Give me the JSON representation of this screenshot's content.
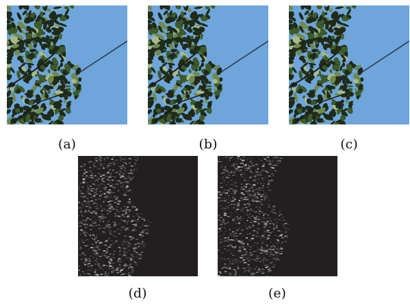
{
  "figure": {
    "panels": [
      {
        "id": "a",
        "caption": "(a)",
        "kind": "photo",
        "sky_color": "#6ea5db",
        "foliage_color": "#1f2a18"
      },
      {
        "id": "b",
        "caption": "(b)",
        "kind": "photo",
        "sky_color": "#6ea5db",
        "foliage_color": "#1f2a18"
      },
      {
        "id": "c",
        "caption": "(c)",
        "kind": "photo",
        "sky_color": "#6ea5db",
        "foliage_color": "#1f2a18"
      },
      {
        "id": "d",
        "caption": "(d)",
        "kind": "difference-map",
        "background_color": "#231f20",
        "detail_color": "#cfcfcf"
      },
      {
        "id": "e",
        "caption": "(e)",
        "kind": "difference-map",
        "background_color": "#231f20",
        "detail_color": "#cfcfcf"
      }
    ]
  }
}
